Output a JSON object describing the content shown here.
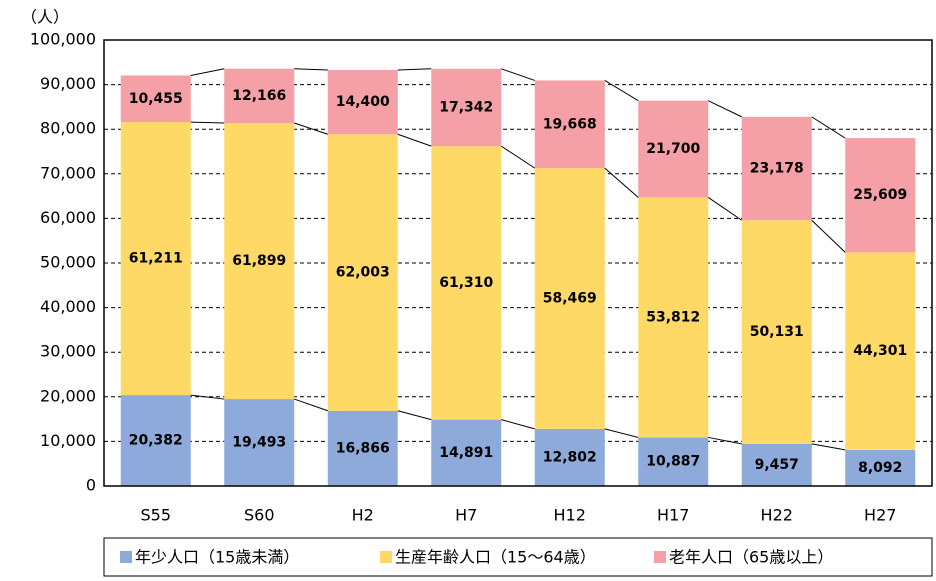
{
  "chart_data": {
    "type": "stacked_bar",
    "y_label": "（人）",
    "categories": [
      "S55",
      "S60",
      "H2",
      "H7",
      "H12",
      "H17",
      "H22",
      "H27"
    ],
    "series": [
      {
        "name": "年少人口（15歳未満）",
        "color": "#8eaadb",
        "values": [
          20382,
          19493,
          16866,
          14891,
          12802,
          10887,
          9457,
          8092
        ],
        "value_labels": [
          "20,382",
          "19,493",
          "16,866",
          "14,891",
          "12,802",
          "10,887",
          "9,457",
          "8,092"
        ]
      },
      {
        "name": "生産年齢人口（15～64歳）",
        "color": "#ffd966",
        "values": [
          61211,
          61899,
          62003,
          61310,
          58469,
          53812,
          50131,
          44301
        ],
        "value_labels": [
          "61,211",
          "61,899",
          "62,003",
          "61,310",
          "58,469",
          "53,812",
          "50,131",
          "44,301"
        ]
      },
      {
        "name": "老年人口（65歳以上）",
        "color": "#f4a0a6",
        "values": [
          10455,
          12166,
          14400,
          17342,
          19668,
          21700,
          23178,
          25609
        ],
        "value_labels": [
          "10,455",
          "12,166",
          "14,400",
          "17,342",
          "19,668",
          "21,700",
          "23,178",
          "25,609"
        ]
      }
    ],
    "ylim": [
      0,
      100000
    ],
    "yticks": [
      0,
      {
        "value": 10000,
        "label": "10,000"
      },
      {
        "value": 20000,
        "label": "20,000"
      },
      {
        "value": 30000,
        "label": "30,000"
      },
      {
        "value": 40000,
        "label": "40,000"
      },
      {
        "value": 50000,
        "label": "50,000"
      },
      {
        "value": 60000,
        "label": "60,000"
      },
      {
        "value": 70000,
        "label": "70,000"
      },
      {
        "value": 80000,
        "label": "80,000"
      },
      {
        "value": 90000,
        "label": "90,000"
      },
      {
        "value": 100000,
        "label": "100,000"
      }
    ],
    "grid": true,
    "legend": "bottom"
  }
}
